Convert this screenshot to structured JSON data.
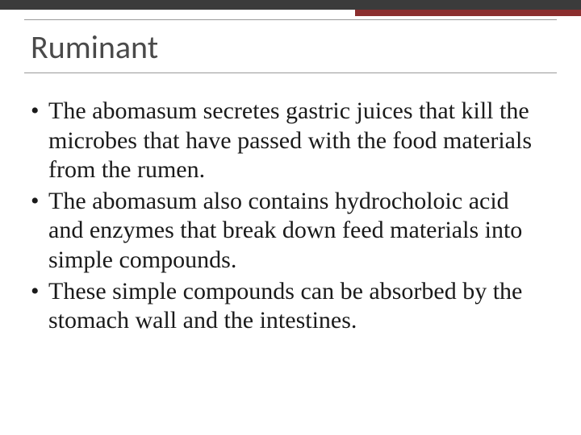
{
  "slide": {
    "title": "Ruminant",
    "bullets": [
      "The abomasum secretes gastric juices that kill the microbes that have passed with the food materials from the rumen.",
      "The abomasum also contains hydrocholoic acid and enzymes that break down feed materials into simple compounds.",
      "These simple compounds can be absorbed by the stomach wall and the intestines."
    ],
    "colors": {
      "top_bar": "#3b3b3b",
      "accent": "#8b2e2e",
      "rule": "#999999",
      "title_text": "#4a4a4a",
      "body_text": "#1a1a1a",
      "background": "#ffffff"
    },
    "typography": {
      "title_font": "Calibri",
      "title_size_pt": 30,
      "body_font": "Georgia",
      "body_size_pt": 22
    }
  }
}
